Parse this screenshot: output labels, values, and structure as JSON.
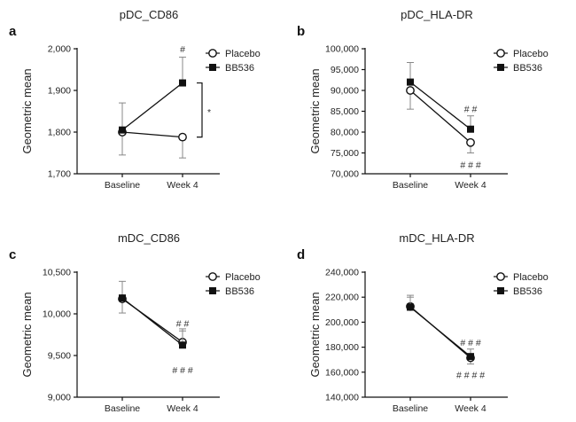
{
  "chart_data": [
    {
      "letter": "a",
      "title": "pDC_CD86",
      "type": "line",
      "ylabel": "Geometric mean",
      "categories": [
        "Baseline",
        "Week 4"
      ],
      "ylim": [
        1700,
        2000
      ],
      "yticks": [
        1700,
        1800,
        1900,
        2000
      ],
      "ytick_labels": [
        "1,700",
        "1,800",
        "1,900",
        "2,000"
      ],
      "series": [
        {
          "name": "Placebo",
          "marker": "open-circle",
          "values": [
            1800,
            1788
          ],
          "err": [
            55,
            50
          ]
        },
        {
          "name": "BB536",
          "marker": "filled-square",
          "values": [
            1805,
            1918
          ],
          "err": [
            65,
            62
          ]
        }
      ],
      "annotations": [
        {
          "text": "#",
          "x": "Week 4",
          "y": 2000,
          "side": "above"
        }
      ],
      "bracket": {
        "from": 1918,
        "to": 1788,
        "text": "*"
      },
      "legend": "top-right"
    },
    {
      "letter": "b",
      "title": "pDC_HLA-DR",
      "type": "line",
      "ylabel": "Geometric mean",
      "categories": [
        "Baseline",
        "Week 4"
      ],
      "ylim": [
        70000,
        100000
      ],
      "yticks": [
        70000,
        75000,
        80000,
        85000,
        90000,
        95000,
        100000
      ],
      "ytick_labels": [
        "70,000",
        "75,000",
        "80,000",
        "85,000",
        "90,000",
        "95,000",
        "100,000"
      ],
      "series": [
        {
          "name": "Placebo",
          "marker": "open-circle",
          "values": [
            90000,
            77500
          ],
          "err": [
            4500,
            2500
          ]
        },
        {
          "name": "BB536",
          "marker": "filled-square",
          "values": [
            92000,
            80700
          ],
          "err": [
            4700,
            3200
          ]
        }
      ],
      "annotations": [
        {
          "text": "# #",
          "x": "Week 4",
          "y": 85600,
          "side": "above"
        },
        {
          "text": "# # #",
          "x": "Week 4",
          "y": 72200,
          "side": "below"
        }
      ],
      "legend": "top-right"
    },
    {
      "letter": "c",
      "title": "mDC_CD86",
      "type": "line",
      "ylabel": "Geometric mean",
      "categories": [
        "Baseline",
        "Week 4"
      ],
      "ylim": [
        9000,
        10500
      ],
      "yticks": [
        9000,
        9500,
        10000,
        10500
      ],
      "ytick_labels": [
        "9,000",
        "9,500",
        "10,000",
        "10,500"
      ],
      "series": [
        {
          "name": "Placebo",
          "marker": "open-circle",
          "values": [
            10180,
            9660
          ],
          "err": [
            170,
            160
          ]
        },
        {
          "name": "BB536",
          "marker": "filled-square",
          "values": [
            10190,
            9625
          ],
          "err": [
            200,
            170
          ]
        }
      ],
      "annotations": [
        {
          "text": "# #",
          "x": "Week 4",
          "y": 9890,
          "side": "above"
        },
        {
          "text": "# # #",
          "x": "Week 4",
          "y": 9330,
          "side": "below"
        }
      ],
      "legend": "top-right"
    },
    {
      "letter": "d",
      "title": "mDC_HLA-DR",
      "type": "line",
      "ylabel": "Geometric mean",
      "categories": [
        "Baseline",
        "Week 4"
      ],
      "ylim": [
        140000,
        240000
      ],
      "yticks": [
        140000,
        160000,
        180000,
        200000,
        220000,
        240000
      ],
      "ytick_labels": [
        "140,000",
        "160,000",
        "180,000",
        "200,000",
        "220,000",
        "240,000"
      ],
      "series": [
        {
          "name": "Placebo",
          "marker": "open-circle",
          "values": [
            212500,
            171500
          ],
          "err": [
            9000,
            5000
          ]
        },
        {
          "name": "BB536",
          "marker": "filled-square",
          "values": [
            212000,
            172500
          ],
          "err": [
            8000,
            6000
          ]
        }
      ],
      "annotations": [
        {
          "text": "# # #",
          "x": "Week 4",
          "y": 184000,
          "side": "above"
        },
        {
          "text": "# # # #",
          "x": "Week 4",
          "y": 158000,
          "side": "below"
        }
      ],
      "legend": "top-right"
    }
  ]
}
